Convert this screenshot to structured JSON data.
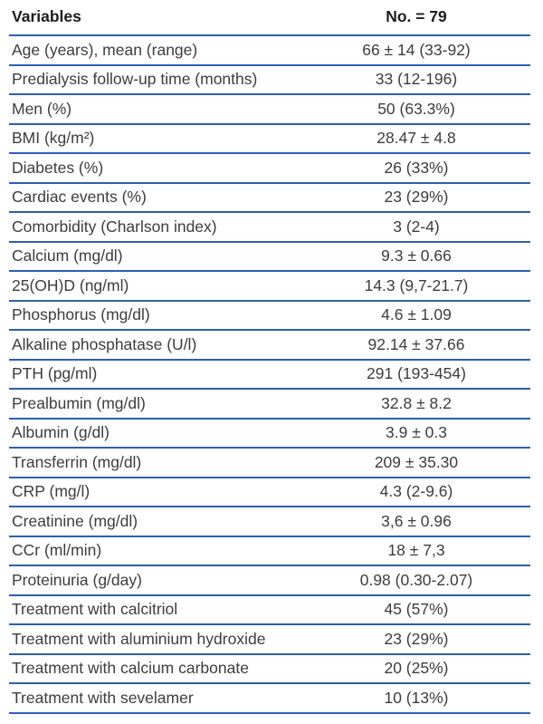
{
  "table": {
    "header": {
      "variables": "Variables",
      "count": "No. = 79"
    },
    "rows": [
      {
        "variable": "Age (years), mean (range)",
        "value": "66 ± 14 (33-92)"
      },
      {
        "variable": "Predialysis follow-up time (months)",
        "value": "33 (12-196)"
      },
      {
        "variable": "Men (%)",
        "value": "50 (63.3%)"
      },
      {
        "variable": "BMI (kg/m²)",
        "value": "28.47 ± 4.8"
      },
      {
        "variable": "Diabetes (%)",
        "value": "26 (33%)"
      },
      {
        "variable": "Cardiac events (%)",
        "value": "23 (29%)"
      },
      {
        "variable": "Comorbidity (Charlson index)",
        "value": "3 (2-4)"
      },
      {
        "variable": "Calcium (mg/dl)",
        "value": "9.3 ± 0.66"
      },
      {
        "variable": "25(OH)D (ng/ml)",
        "value": "14.3 (9,7-21.7)"
      },
      {
        "variable": "Phosphorus (mg/dl)",
        "value": "4.6 ± 1.09"
      },
      {
        "variable": "Alkaline phosphatase (U/l)",
        "value": "92.14 ± 37.66"
      },
      {
        "variable": "PTH (pg/ml)",
        "value": "291 (193-454)"
      },
      {
        "variable": "Prealbumin (mg/dl)",
        "value": "32.8 ± 8.2"
      },
      {
        "variable": "Albumin (g/dl)",
        "value": "3.9 ± 0.3"
      },
      {
        "variable": "Transferrin (mg/dl)",
        "value": "209 ± 35.30"
      },
      {
        "variable": "CRP (mg/l)",
        "value": "4.3 (2-9.6)"
      },
      {
        "variable": "Creatinine (mg/dl)",
        "value": "3,6 ± 0.96"
      },
      {
        "variable": "CCr (ml/min)",
        "value": "18 ± 7,3"
      },
      {
        "variable": "Proteinuria (g/day)",
        "value": "0.98 (0.30-2.07)"
      },
      {
        "variable": "Treatment with calcitriol",
        "value": "45 (57%)"
      },
      {
        "variable": "Treatment with aluminium hydroxide",
        "value": "23 (29%)"
      },
      {
        "variable": "Treatment with calcium carbonate",
        "value": "20 (25%)"
      },
      {
        "variable": "Treatment with sevelamer",
        "value": "10 (13%)"
      }
    ]
  },
  "colors": {
    "rule": "#2e5fae",
    "text": "#3d3d3d",
    "header_text": "#1d1d1d",
    "background": "#ffffff"
  }
}
